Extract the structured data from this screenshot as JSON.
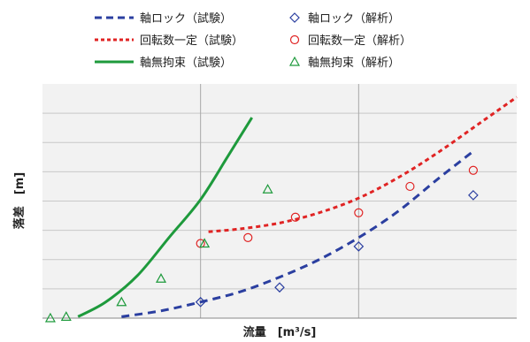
{
  "colors": {
    "rotor_locked": "#2b3fa0",
    "constant_speed": "#e02424",
    "unrestrained": "#1e9a3c",
    "grid": "#c8c8c8",
    "plot_bg": "#f2f2f2"
  },
  "legend": {
    "rotor_locked_test": "軸ロック（試験）",
    "rotor_locked_analysis": "軸ロック（解析）",
    "constant_speed_test": "回転数一定（試験）",
    "constant_speed_analysis": "回転数一定（解析）",
    "unrestrained_test": "軸無拘束（試験）",
    "unrestrained_analysis": "軸無拘束（解析）"
  },
  "chart_data": {
    "type": "line",
    "xlabel": "流量　[m³/s]",
    "ylabel": "落差　[m]",
    "xlim": [
      0,
      6
    ],
    "ylim": [
      0,
      8
    ],
    "grid": true,
    "legend_position": "top",
    "series": [
      {
        "name": "軸ロック（試験）",
        "kind": "line",
        "style": "dashed",
        "color": "#2b3fa0",
        "x": [
          1.0,
          1.5,
          2.0,
          2.5,
          3.0,
          3.5,
          4.0,
          4.5,
          5.0,
          5.45
        ],
        "y": [
          0.05,
          0.25,
          0.55,
          0.9,
          1.4,
          2.0,
          2.75,
          3.65,
          4.75,
          5.7
        ]
      },
      {
        "name": "軸ロック（解析）",
        "kind": "marker",
        "marker": "diamond",
        "color": "#2b3fa0",
        "x": [
          2.0,
          3.0,
          4.0,
          5.45
        ],
        "y": [
          0.55,
          1.05,
          2.45,
          4.2
        ]
      },
      {
        "name": "回転数一定（試験）",
        "kind": "line",
        "style": "dashed",
        "color": "#e02424",
        "x": [
          2.1,
          2.5,
          3.0,
          3.5,
          4.0,
          4.5,
          5.0,
          5.5,
          6.0
        ],
        "y": [
          2.95,
          3.05,
          3.25,
          3.6,
          4.1,
          4.8,
          5.65,
          6.6,
          7.55
        ]
      },
      {
        "name": "回転数一定（解析）",
        "kind": "marker",
        "marker": "circle",
        "color": "#e02424",
        "x": [
          2.0,
          2.6,
          3.2,
          4.0,
          4.65,
          5.45
        ],
        "y": [
          2.55,
          2.75,
          3.45,
          3.6,
          4.5,
          5.05
        ]
      },
      {
        "name": "軸無拘束（試験）",
        "kind": "line",
        "style": "solid",
        "color": "#1e9a3c",
        "x": [
          0.45,
          0.8,
          1.2,
          1.6,
          2.0,
          2.35,
          2.65
        ],
        "y": [
          0.05,
          0.55,
          1.45,
          2.75,
          4.05,
          5.55,
          6.85
        ]
      },
      {
        "name": "軸無拘束（解析）",
        "kind": "marker",
        "marker": "triangle",
        "color": "#1e9a3c",
        "x": [
          0.1,
          0.3,
          1.0,
          1.5,
          2.05,
          2.85
        ],
        "y": [
          0.0,
          0.05,
          0.55,
          1.35,
          2.55,
          4.4
        ]
      }
    ]
  }
}
